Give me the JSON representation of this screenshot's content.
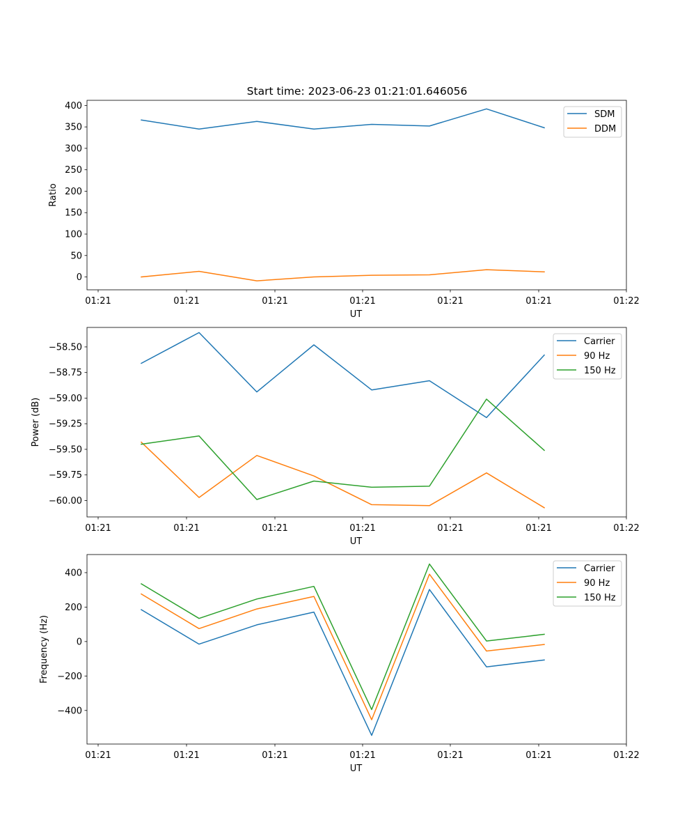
{
  "title": "Start time: 2023-06-23 01:21:01.646056",
  "chart_data": [
    {
      "type": "line",
      "xlabel": "UT",
      "ylabel": "Ratio",
      "x_tick_labels": [
        "01:21",
        "01:21",
        "01:21",
        "01:21",
        "01:21",
        "01:21",
        "01:22"
      ],
      "y_ticks": [
        0,
        50,
        100,
        150,
        200,
        250,
        300,
        350,
        400
      ],
      "ylim": [
        -30,
        412
      ],
      "legend_position": "upper right",
      "series": [
        {
          "name": "SDM",
          "color": "#1f77b4",
          "values": [
            366,
            345,
            363,
            345,
            356,
            352,
            392,
            348
          ]
        },
        {
          "name": "DDM",
          "color": "#ff7f0e",
          "values": [
            0,
            13,
            -9,
            0,
            4,
            5,
            17,
            12
          ]
        }
      ]
    },
    {
      "type": "line",
      "xlabel": "UT",
      "ylabel": "Power (dB)",
      "x_tick_labels": [
        "01:21",
        "01:21",
        "01:21",
        "01:21",
        "01:21",
        "01:21",
        "01:22"
      ],
      "y_ticks": [
        -60.0,
        -59.75,
        -59.5,
        -59.25,
        -59.0,
        -58.75,
        -58.5
      ],
      "y_tick_labels": [
        "−60.00",
        "−59.75",
        "−59.50",
        "−59.25",
        "−59.00",
        "−58.75",
        "−58.50"
      ],
      "ylim": [
        -60.16,
        -58.31
      ],
      "legend_position": "upper right",
      "series": [
        {
          "name": "Carrier",
          "color": "#1f77b4",
          "values": [
            -58.66,
            -58.36,
            -58.94,
            -58.48,
            -58.92,
            -58.83,
            -59.19,
            -58.58
          ]
        },
        {
          "name": "90 Hz",
          "color": "#ff7f0e",
          "values": [
            -59.43,
            -59.97,
            -59.56,
            -59.76,
            -60.04,
            -60.05,
            -59.73,
            -60.07
          ]
        },
        {
          "name": "150 Hz",
          "color": "#2ca02c",
          "values": [
            -59.45,
            -59.37,
            -59.99,
            -59.81,
            -59.87,
            -59.86,
            -59.01,
            -59.51
          ]
        }
      ]
    },
    {
      "type": "line",
      "xlabel": "UT",
      "ylabel": "Frequency (Hz)",
      "x_tick_labels": [
        "01:21",
        "01:21",
        "01:21",
        "01:21",
        "01:21",
        "01:21",
        "01:22"
      ],
      "y_ticks": [
        -400,
        -200,
        0,
        200,
        400
      ],
      "y_tick_labels": [
        "−400",
        "−200",
        "0",
        "200",
        "400"
      ],
      "ylim": [
        -595,
        505
      ],
      "legend_position": "upper right",
      "series": [
        {
          "name": "Carrier",
          "color": "#1f77b4",
          "values": [
            185,
            -15,
            97,
            171,
            -545,
            302,
            -147,
            -107
          ]
        },
        {
          "name": "90 Hz",
          "color": "#ff7f0e",
          "values": [
            276,
            75,
            189,
            262,
            -454,
            391,
            -55,
            -17
          ]
        },
        {
          "name": "150 Hz",
          "color": "#2ca02c",
          "values": [
            335,
            134,
            247,
            320,
            -395,
            450,
            3,
            42
          ]
        }
      ]
    }
  ]
}
